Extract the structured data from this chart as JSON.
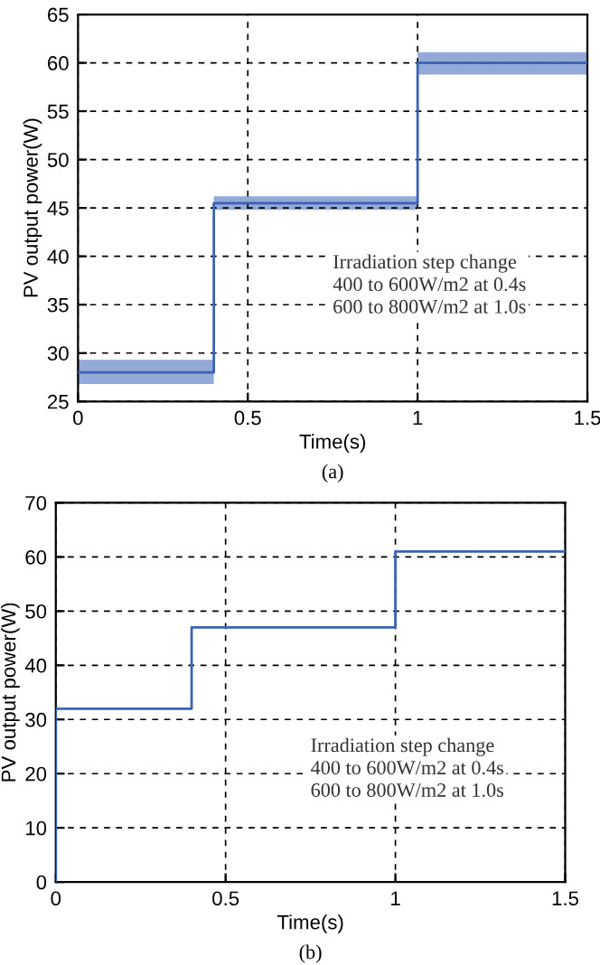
{
  "chart_data": [
    {
      "type": "line",
      "xlabel": "Time(s)",
      "ylabel": "PV output power(W)",
      "xlim": [
        0,
        1.5
      ],
      "ylim": [
        25,
        65
      ],
      "xticks": [
        0,
        0.5,
        1,
        1.5
      ],
      "yticks": [
        25,
        30,
        35,
        40,
        45,
        50,
        55,
        60,
        65
      ],
      "grid": true,
      "line_style": "solid",
      "series": [
        {
          "color": "#3a63b8",
          "x": [
            0,
            0.4,
            0.4,
            1.0,
            1.0,
            1.5
          ],
          "values": [
            28,
            28,
            45.5,
            45.5,
            60,
            60
          ],
          "lower": [
            26.8,
            26.8,
            44.8,
            44.8,
            58.8,
            58.8
          ],
          "upper": [
            29.3,
            29.3,
            46.2,
            46.2,
            61.1,
            61.1
          ]
        }
      ],
      "annotations": [
        "Irradiation step change",
        "400 to 600W/m2 at 0.4s",
        "600 to 800W/m2 at 1.0s",
        "(a)"
      ]
    },
    {
      "type": "line",
      "xlabel": "Time(s)",
      "ylabel": "PV output power(W)",
      "xlim": [
        0,
        1.5
      ],
      "ylim": [
        0,
        70
      ],
      "xticks": [
        0,
        0.5,
        1,
        1.5
      ],
      "yticks": [
        0,
        10,
        20,
        30,
        40,
        50,
        60,
        70
      ],
      "grid": true,
      "line_style": "solid",
      "series": [
        {
          "color": "#3a63b8",
          "x": [
            0,
            0,
            0.4,
            0.4,
            1.0,
            1.0,
            1.5
          ],
          "values": [
            0,
            32,
            32,
            47,
            47,
            61,
            61
          ]
        }
      ],
      "annotations": [
        "Irradiation step change",
        "400 to 600W/m2 at 0.4s",
        "600 to 800W/m2 at 1.0s",
        "(b)"
      ]
    }
  ]
}
